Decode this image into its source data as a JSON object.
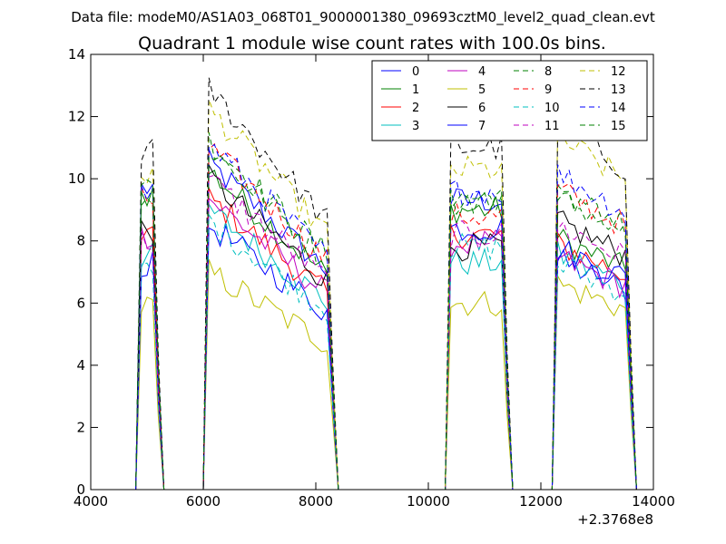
{
  "header": {
    "datafile": "Data file: modeM0/AS1A03_068T01_9000001380_09693cztM0_level2_quad_clean.evt"
  },
  "chart_data": {
    "type": "line",
    "title": "Quadrant 1 module wise count rates with 100.0s bins.",
    "xlabel": "",
    "ylabel": "",
    "x_offset_label": "+2.3768e8",
    "xlim": [
      4000,
      14000
    ],
    "ylim": [
      0,
      14
    ],
    "xticks": [
      4000,
      6000,
      8000,
      10000,
      12000,
      14000
    ],
    "yticks": [
      0,
      2,
      4,
      6,
      8,
      10,
      12,
      14
    ],
    "grid": false,
    "legend_position": "top-right",
    "segments": [
      {
        "start": 4900,
        "end": 5300
      },
      {
        "start": 6100,
        "end": 8400
      },
      {
        "start": 10400,
        "end": 11500
      },
      {
        "start": 12300,
        "end": 13700
      }
    ],
    "series": [
      {
        "name": "0",
        "color": "#0000ff",
        "dash": "solid",
        "levels": [
          9.7,
          8.4,
          9.3,
          7.0
        ]
      },
      {
        "name": "1",
        "color": "#008000",
        "dash": "solid",
        "levels": [
          9.5,
          8.2,
          9.0,
          7.7
        ]
      },
      {
        "name": "2",
        "color": "#ff0000",
        "dash": "solid",
        "levels": [
          8.3,
          7.5,
          8.2,
          7.5
        ]
      },
      {
        "name": "3",
        "color": "#00bfbf",
        "dash": "solid",
        "levels": [
          7.5,
          7.2,
          7.3,
          7.2
        ]
      },
      {
        "name": "4",
        "color": "#bf00bf",
        "dash": "solid",
        "levels": [
          8.2,
          7.5,
          7.9,
          7.1
        ]
      },
      {
        "name": "5",
        "color": "#bfbf00",
        "dash": "solid",
        "levels": [
          5.9,
          5.6,
          6.0,
          6.3
        ]
      },
      {
        "name": "6",
        "color": "#000000",
        "dash": "solid",
        "levels": [
          8.4,
          8.0,
          7.8,
          8.2
        ]
      },
      {
        "name": "7",
        "color": "#0000ff",
        "dash": "solid",
        "levels": [
          7.2,
          6.8,
          8.4,
          7.4
        ]
      },
      {
        "name": "8",
        "color": "#008000",
        "dash": "dashed",
        "levels": [
          9.4,
          9.0,
          9.4,
          9.0
        ]
      },
      {
        "name": "9",
        "color": "#ff0000",
        "dash": "dashed",
        "levels": [
          9.3,
          8.8,
          8.8,
          9.2
        ]
      },
      {
        "name": "10",
        "color": "#00bfbf",
        "dash": "dashed",
        "levels": [
          7.0,
          6.9,
          7.8,
          6.9
        ]
      },
      {
        "name": "11",
        "color": "#bf00bf",
        "dash": "dashed",
        "levels": [
          8.0,
          8.0,
          8.2,
          8.1
        ]
      },
      {
        "name": "12",
        "color": "#bfbf00",
        "dash": "dashed",
        "levels": [
          10.2,
          9.8,
          10.3,
          10.8
        ]
      },
      {
        "name": "13",
        "color": "#000000",
        "dash": "dashed",
        "levels": [
          10.9,
          10.3,
          11.0,
          11.2
        ]
      },
      {
        "name": "14",
        "color": "#0000ff",
        "dash": "dashed",
        "levels": [
          9.5,
          8.9,
          9.6,
          9.7
        ]
      },
      {
        "name": "15",
        "color": "#008000",
        "dash": "dashed",
        "levels": [
          9.8,
          8.8,
          9.3,
          9.2
        ]
      }
    ]
  }
}
